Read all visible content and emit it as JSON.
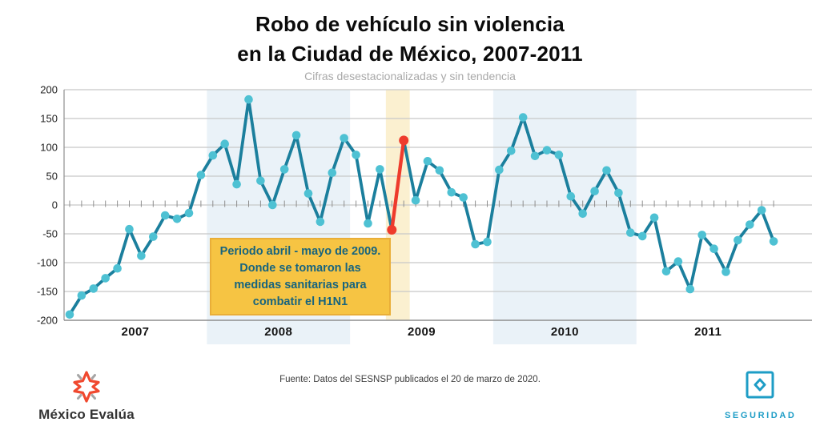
{
  "title": {
    "line1": "Robo de vehículo sin violencia",
    "line2": "en la Ciudad de México, 2007-2011"
  },
  "subtitle": "Cifras desestacionalizadas y sin tendencia",
  "annotation": {
    "lines": [
      "Periodo abril - mayo de 2009.",
      "Donde se tomaron las",
      "medidas sanitarias para",
      "combatir el H1N1"
    ]
  },
  "source": "Fuente: Datos del SESNSP publicados el 20 de marzo de 2020.",
  "branding": {
    "left_wordmark": "México Evalúa",
    "right_wordmark": "SEGURIDAD",
    "star_icon_color": "#f0492f",
    "star_accent_color": "#a5a5a5",
    "seguridad_color": "#1e9dc6"
  },
  "chart_data": {
    "type": "line",
    "title": "Robo de vehículo sin violencia en la Ciudad de México, 2007-2011",
    "subtitle": "Cifras desestacionalizadas y sin tendencia",
    "frequency": "monthly",
    "start_month": "2007-01",
    "x_axis_years": [
      "2007",
      "2008",
      "2009",
      "2010",
      "2011"
    ],
    "y_axis_ticks": [
      200,
      150,
      100,
      50,
      0,
      -50,
      -100,
      -150,
      -200
    ],
    "ylim": [
      -200,
      200
    ],
    "grid": true,
    "legend": false,
    "values": [
      -190,
      -157,
      -145,
      -127,
      -110,
      -42,
      -88,
      -55,
      -18,
      -24,
      -14,
      52,
      86,
      106,
      36,
      183,
      42,
      0,
      62,
      121,
      20,
      -29,
      56,
      116,
      87,
      -32,
      62,
      -43,
      112,
      8,
      76,
      60,
      22,
      13,
      -68,
      -64,
      61,
      94,
      152,
      85,
      95,
      87,
      15,
      -15,
      24,
      60,
      21,
      -48,
      -54,
      -22,
      -115,
      -98,
      -146,
      -52,
      -76,
      -116,
      -61,
      -34,
      -9,
      -63
    ],
    "red_segment": {
      "from_index": 27,
      "to_index": 28,
      "months": [
        "2009-04",
        "2009-05"
      ]
    },
    "bands": [
      {
        "name": "year-2008",
        "style": "blue",
        "from_index": 11.5,
        "to_index": 23.5
      },
      {
        "name": "h1n1-abril-mayo-2009",
        "style": "yellow",
        "from_index": 26.5,
        "to_index": 28.5
      },
      {
        "name": "year-2010",
        "style": "blue",
        "from_index": 35.5,
        "to_index": 47.5
      }
    ],
    "colors": {
      "line": "#1b7f9d",
      "marker": "#4ec1d3",
      "highlight": "#ee3b2c",
      "band_blue": "#eaf2f8",
      "band_yellow": "#fbf0d0",
      "grid": "#c8c8c8",
      "axis": "#8e8e8e",
      "tick": "#8e8e8e",
      "annotation_bg": "#f6c443",
      "annotation_text": "#17647e"
    }
  }
}
